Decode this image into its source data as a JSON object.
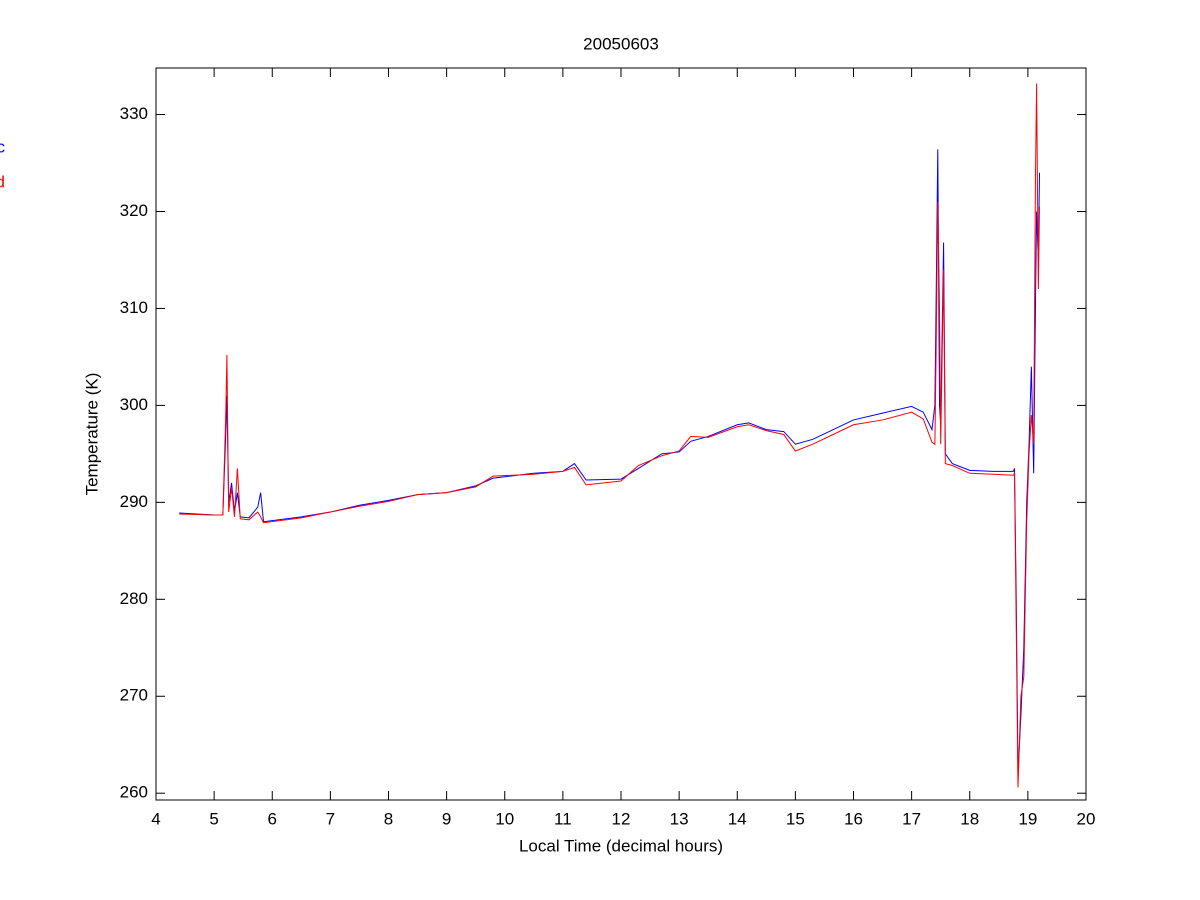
{
  "chart_data": {
    "type": "line",
    "title": "20050603",
    "x_label": "Local Time (decimal hours)",
    "y_label": "Temperature (K)",
    "x": [
      4.4,
      5.0,
      5.15,
      5.2,
      5.22,
      5.25,
      5.3,
      5.35,
      5.4,
      5.45,
      5.6,
      5.75,
      5.8,
      5.85,
      6.5,
      7.0,
      7.5,
      8.0,
      8.5,
      9.0,
      9.5,
      9.8,
      10.5,
      11.0,
      11.2,
      11.4,
      12.0,
      12.3,
      12.7,
      13.0,
      13.2,
      13.5,
      14.0,
      14.2,
      14.5,
      14.8,
      15.0,
      15.3,
      16.0,
      16.5,
      17.0,
      17.2,
      17.35,
      17.4,
      17.42,
      17.45,
      17.48,
      17.5,
      17.55,
      17.58,
      17.7,
      18.0,
      18.4,
      18.75,
      18.77,
      18.8,
      18.83,
      18.88,
      18.93,
      18.98,
      19.02,
      19.06,
      19.1,
      19.13,
      19.15,
      19.18,
      19.2
    ],
    "series": [
      {
        "name": "c",
        "color": "#0000ff",
        "values": [
          288.9,
          288.7,
          288.7,
          297,
          301,
          290,
          292,
          289,
          291,
          288.5,
          288.4,
          289.5,
          291,
          288.0,
          288.5,
          289.0,
          289.7,
          290.2,
          290.8,
          291.0,
          291.7,
          292.5,
          293.0,
          293.2,
          294.0,
          292.3,
          292.4,
          293.5,
          295.0,
          295.2,
          296.3,
          296.8,
          298.0,
          298.2,
          297.5,
          297.3,
          296.0,
          296.5,
          298.5,
          299.2,
          299.9,
          299.3,
          297.5,
          300,
          310,
          326.4,
          300,
          298,
          316.8,
          295,
          294,
          293.3,
          293.2,
          293.2,
          293.5,
          280,
          262,
          268,
          275,
          290,
          296,
          304,
          293,
          310,
          320,
          315,
          324
        ]
      },
      {
        "name": "d",
        "color": "#ff0000",
        "values": [
          288.8,
          288.7,
          288.7,
          299,
          305.2,
          289,
          291.5,
          288.5,
          293.5,
          288.3,
          288.2,
          289,
          288.5,
          287.9,
          288.4,
          289.0,
          289.6,
          290.1,
          290.8,
          291.0,
          291.6,
          292.7,
          292.9,
          293.2,
          293.6,
          291.8,
          292.2,
          293.8,
          294.8,
          295.3,
          296.8,
          296.7,
          297.8,
          298.0,
          297.4,
          297.0,
          295.3,
          296.0,
          298.0,
          298.5,
          299.3,
          298.6,
          296.2,
          296,
          305,
          321,
          310,
          296,
          314,
          294,
          293.8,
          293.0,
          292.9,
          292.8,
          293,
          277,
          260.6,
          270,
          272,
          288,
          295,
          299,
          296,
          323.2,
          333.2,
          312,
          320.5
        ]
      }
    ],
    "xlim": [
      4,
      20
    ],
    "xticks": [
      4,
      5,
      6,
      7,
      8,
      9,
      10,
      11,
      12,
      13,
      14,
      15,
      16,
      17,
      18,
      19,
      20
    ],
    "ylim": [
      259.3,
      334.8
    ],
    "yticks": [
      260,
      270,
      280,
      290,
      300,
      310,
      320,
      330
    ]
  }
}
